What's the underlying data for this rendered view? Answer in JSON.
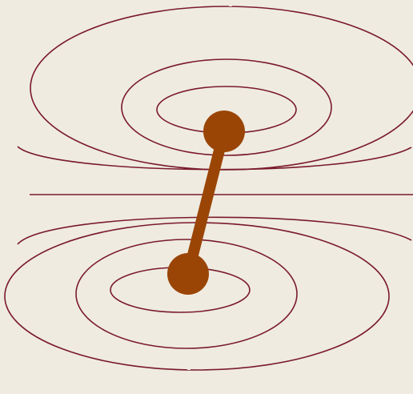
{
  "colors": {
    "background": "#efebe1",
    "field_line": "#7a1a2a",
    "dipole": "#9a4506"
  },
  "diagram": {
    "upper_field_lines": 4,
    "lower_field_lines": 4,
    "midplane_line": true,
    "dipole_charges": 2
  }
}
